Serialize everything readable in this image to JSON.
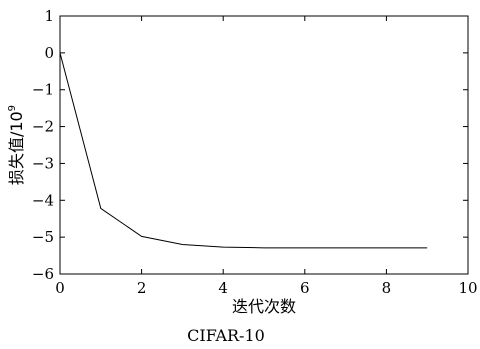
{
  "chart_data": {
    "type": "line",
    "title": "",
    "caption": "CIFAR-10",
    "xlabel": "迭代次数",
    "ylabel": "损失值/10",
    "ylabel_exponent": "9",
    "xlim": [
      0,
      10
    ],
    "ylim": [
      -6,
      1
    ],
    "xticks": [
      0,
      2,
      4,
      6,
      8,
      10
    ],
    "yticks": [
      1,
      0,
      -1,
      -2,
      -3,
      -4,
      -5,
      -6
    ],
    "xtick_labels": [
      "0",
      "2",
      "4",
      "6",
      "8",
      "10"
    ],
    "ytick_labels": [
      "1",
      "0",
      "−1",
      "−2",
      "−3",
      "−4",
      "−5",
      "−6"
    ],
    "grid": false,
    "legend": false,
    "series": [
      {
        "color": "#000000",
        "x": [
          0,
          1,
          2,
          3,
          4,
          5,
          6,
          7,
          8,
          9
        ],
        "y": [
          0,
          -4.22,
          -4.98,
          -5.2,
          -5.27,
          -5.29,
          -5.29,
          -5.29,
          -5.29,
          -5.29
        ]
      }
    ]
  }
}
